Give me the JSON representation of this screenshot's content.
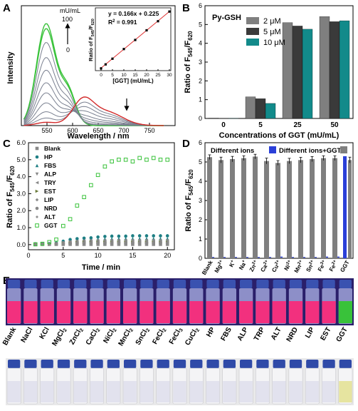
{
  "colors": {
    "gray": "#7f7f7f",
    "dark": "#3a3a3a",
    "teal": "#128a8a",
    "blue": "#2a3fd8",
    "green": "#39c23a",
    "red": "#d22a2a",
    "spectrum_gray": "#7a8090",
    "fit_line": "#e03030",
    "pink": "#f2307e",
    "uv_bg": "#2a1f6a"
  },
  "chart_data": [
    {
      "panel": "A",
      "type": "line",
      "xlabel": "Wavelength / nm",
      "ylabel": "Intensity",
      "xlim": [
        500,
        800
      ],
      "xticks": [
        550,
        600,
        650,
        700,
        750
      ],
      "ylim": [
        0,
        48
      ],
      "conc_units": "mU/mL",
      "conc_max": "100",
      "conc_min": "0",
      "series": [
        {
          "peak545": 40.5,
          "peak620": 0.0,
          "color": "green"
        },
        {
          "peak545": 38.5,
          "peak620": 0.0,
          "color": "green"
        },
        {
          "peak545": 33.0,
          "peak620": 0.3,
          "color": "gray"
        },
        {
          "peak545": 27.0,
          "peak620": 0.6,
          "color": "gray"
        },
        {
          "peak545": 22.0,
          "peak620": 1.2,
          "color": "gray"
        },
        {
          "peak545": 17.0,
          "peak620": 2.0,
          "color": "gray"
        },
        {
          "peak545": 13.0,
          "peak620": 3.0,
          "color": "gray"
        },
        {
          "peak545": 9.0,
          "peak620": 4.5,
          "color": "gray"
        },
        {
          "peak545": 5.5,
          "peak620": 6.0,
          "color": "gray"
        },
        {
          "peak545": 3.0,
          "peak620": 7.5,
          "color": "gray"
        },
        {
          "peak545": 1.3,
          "peak620": 9.2,
          "color": "red"
        }
      ],
      "inset": {
        "type": "scatter",
        "xlabel": "[GGT]  (mU/mL)",
        "ylabel": "Ratio of F545/F620",
        "ylabel_main": "Ratio of F",
        "ylabel_sub1": "545",
        "ylabel_sep": "/F",
        "ylabel_sub2": "620",
        "equation": "y = 0.166x + 0.225",
        "r2_main": "R",
        "r2_sup": "2",
        "r2_rest": " = 0.991",
        "xlim": [
          0,
          30
        ],
        "xticks": [
          0,
          5,
          10,
          15,
          20,
          25,
          30
        ],
        "ylim": [
          0,
          5.4
        ],
        "slope": 0.166,
        "intercept": 0.225,
        "x": [
          0,
          2,
          5,
          10,
          15,
          20,
          25,
          30
        ],
        "y": [
          0.2,
          0.55,
          1.05,
          1.9,
          2.7,
          3.55,
          4.35,
          5.2
        ]
      }
    },
    {
      "panel": "B",
      "type": "bar",
      "title": "Py-GSH",
      "xlabel": "Concentrations of GGT (mU/mL)",
      "ylabel": "Ratio of F545/F620",
      "ylabel_main": "Ratio of F",
      "ylabel_sub1": "545",
      "ylabel_sep": "/F",
      "ylabel_sub2": "620",
      "categories": [
        "0",
        "5",
        "25",
        "50"
      ],
      "ylim": [
        0,
        6
      ],
      "yticks": [
        0,
        1,
        2,
        3,
        4,
        5,
        6
      ],
      "series": [
        {
          "name": "2 μM",
          "values": [
            0.02,
            1.15,
            5.1,
            5.42
          ],
          "color": "gray"
        },
        {
          "name": "5 μM",
          "values": [
            0.01,
            1.05,
            4.92,
            5.15
          ],
          "color": "dark"
        },
        {
          "name": "10 μM",
          "values": [
            0.01,
            0.8,
            4.75,
            5.2
          ],
          "color": "teal"
        }
      ]
    },
    {
      "panel": "C",
      "type": "scatter",
      "xlabel": "Time / min",
      "ylabel": "Ratio of F545/F620",
      "ylabel_main": "Ratio of F",
      "ylabel_sub1": "545",
      "ylabel_sep": "/F",
      "ylabel_sub2": "620",
      "xlim": [
        0,
        21
      ],
      "xticks": [
        0,
        5,
        10,
        15,
        20
      ],
      "ylim": [
        -0.3,
        6
      ],
      "yticks": [
        0,
        1,
        2,
        3,
        4,
        5,
        6
      ],
      "x": [
        1,
        2,
        3,
        4,
        5,
        6,
        7,
        8,
        9,
        10,
        11,
        12,
        13,
        14,
        15,
        16,
        17,
        18,
        19,
        20
      ],
      "series": [
        {
          "name": "Blank",
          "marker": "square",
          "values": [
            0.02,
            0.02,
            0.02,
            0.02,
            0.02,
            0.02,
            0.02,
            0.02,
            0.02,
            0.02,
            0.02,
            0.02,
            0.02,
            0.02,
            0.02,
            0.02,
            0.02,
            0.02,
            0.02,
            0.02
          ]
        },
        {
          "name": "HP",
          "marker": "circle",
          "values": [
            0.05,
            0.05,
            0.06,
            0.1,
            0.2,
            0.3,
            0.35,
            0.38,
            0.4,
            0.45,
            0.48,
            0.5,
            0.5,
            0.5,
            0.52,
            0.52,
            0.52,
            0.52,
            0.52,
            0.52
          ]
        },
        {
          "name": "FBS",
          "marker": "triangle-up",
          "values": [
            0.03,
            0.04,
            0.05,
            0.08,
            0.15,
            0.2,
            0.25,
            0.28,
            0.3,
            0.32,
            0.33,
            0.34,
            0.35,
            0.35,
            0.35,
            0.35,
            0.35,
            0.35,
            0.35,
            0.35
          ]
        },
        {
          "name": "ALP",
          "marker": "triangle-down",
          "values": [
            0.02,
            0.02,
            0.03,
            0.05,
            0.1,
            0.15,
            0.18,
            0.2,
            0.22,
            0.22,
            0.22,
            0.23,
            0.23,
            0.23,
            0.23,
            0.23,
            0.23,
            0.23,
            0.23,
            0.23
          ]
        },
        {
          "name": "TRY",
          "marker": "triangle-left",
          "values": [
            0.02,
            0.02,
            0.02,
            0.04,
            0.08,
            0.12,
            0.15,
            0.17,
            0.18,
            0.18,
            0.18,
            0.18,
            0.18,
            0.18,
            0.18,
            0.18,
            0.18,
            0.18,
            0.18,
            0.18
          ]
        },
        {
          "name": "EST",
          "marker": "triangle-right",
          "values": [
            0.02,
            0.02,
            0.02,
            0.03,
            0.06,
            0.1,
            0.13,
            0.15,
            0.15,
            0.15,
            0.15,
            0.15,
            0.15,
            0.15,
            0.15,
            0.15,
            0.15,
            0.15,
            0.15,
            0.15
          ]
        },
        {
          "name": "LIP",
          "marker": "diamond",
          "values": [
            0.02,
            0.02,
            0.02,
            0.03,
            0.05,
            0.08,
            0.1,
            0.12,
            0.12,
            0.12,
            0.12,
            0.12,
            0.12,
            0.12,
            0.12,
            0.12,
            0.12,
            0.12,
            0.12,
            0.12
          ]
        },
        {
          "name": "NRD",
          "marker": "hexagon",
          "values": [
            0.02,
            0.02,
            0.02,
            0.03,
            0.04,
            0.07,
            0.09,
            0.1,
            0.1,
            0.1,
            0.1,
            0.1,
            0.1,
            0.1,
            0.1,
            0.1,
            0.1,
            0.1,
            0.1,
            0.1
          ]
        },
        {
          "name": "ALT",
          "marker": "star",
          "values": [
            0.02,
            0.02,
            0.02,
            0.02,
            0.04,
            0.06,
            0.08,
            0.08,
            0.08,
            0.08,
            0.08,
            0.08,
            0.08,
            0.08,
            0.08,
            0.08,
            0.08,
            0.08,
            0.08,
            0.08
          ]
        },
        {
          "name": "GGT",
          "marker": "square-open",
          "values": [
            0.02,
            0.05,
            0.15,
            0.3,
            1.1,
            1.5,
            2.3,
            2.8,
            3.5,
            4.1,
            4.6,
            4.9,
            5.0,
            5.0,
            4.9,
            5.1,
            5.0,
            5.1,
            5.0,
            5.0
          ]
        }
      ]
    },
    {
      "panel": "D",
      "type": "bar",
      "ylabel": "Ratio of F545/F620",
      "ylabel_main": "Ratio of F",
      "ylabel_sub1": "545",
      "ylabel_sep": "/F",
      "ylabel_sub2": "620",
      "ylim": [
        0,
        6
      ],
      "yticks": [
        0,
        1,
        2,
        3,
        4,
        5,
        6
      ],
      "legend": [
        "Different ions",
        "Different ions+GGT"
      ],
      "categories": [
        {
          "main": "Blank",
          "sup": ""
        },
        {
          "main": "Mg",
          "sup": "2+"
        },
        {
          "main": "K",
          "sup": "+"
        },
        {
          "main": "Na",
          "sup": "+"
        },
        {
          "main": "Zn",
          "sup": "2+"
        },
        {
          "main": "Ca",
          "sup": "2+"
        },
        {
          "main": "Cu",
          "sup": "2+"
        },
        {
          "main": "Ni",
          "sup": "2+"
        },
        {
          "main": "Mn",
          "sup": "2+"
        },
        {
          "main": "Sn",
          "sup": "2+"
        },
        {
          "main": "Fe",
          "sup": "3+"
        },
        {
          "main": "Fe",
          "sup": "2+"
        },
        {
          "main": "GGT",
          "sup": ""
        }
      ],
      "ions_values": [
        0.03,
        0.03,
        0.03,
        0.03,
        0.03,
        0.03,
        0.05,
        0.03,
        0.03,
        0.03,
        0.05,
        0.05,
        5.3
      ],
      "ions_ggt_values": [
        5.25,
        5.1,
        5.15,
        5.2,
        5.28,
        5.05,
        4.95,
        5.05,
        5.1,
        5.15,
        5.2,
        5.2,
        5.1
      ],
      "errors": [
        0.12,
        0.15,
        0.14,
        0.12,
        0.12,
        0.15,
        0.12,
        0.14,
        0.14,
        0.13,
        0.12,
        0.12,
        0.15
      ]
    }
  ],
  "panel_E": {
    "label": "E",
    "top_strip": "pink",
    "bottom_strip": "clear",
    "labels": [
      [
        {
          "t": "Blank"
        }
      ],
      [
        {
          "t": "NaCl"
        }
      ],
      [
        {
          "t": "KCl"
        }
      ],
      [
        {
          "t": "MgCl"
        },
        {
          "t": "2",
          "sub": true
        }
      ],
      [
        {
          "t": "ZnCl"
        },
        {
          "t": "2",
          "sub": true
        }
      ],
      [
        {
          "t": "CaCl"
        },
        {
          "t": "2",
          "sub": true
        }
      ],
      [
        {
          "t": "NiCl"
        },
        {
          "t": "2",
          "sub": true
        }
      ],
      [
        {
          "t": "MnCl"
        },
        {
          "t": "2",
          "sub": true
        }
      ],
      [
        {
          "t": "SnCl"
        },
        {
          "t": "2",
          "sub": true
        }
      ],
      [
        {
          "t": "FeCl"
        },
        {
          "t": "2",
          "sub": true
        }
      ],
      [
        {
          "t": "FeCl"
        },
        {
          "t": "3",
          "sub": true
        }
      ],
      [
        {
          "t": "CuCl"
        },
        {
          "t": "2",
          "sub": true
        }
      ],
      [
        {
          "t": "HP"
        }
      ],
      [
        {
          "t": "FBS"
        }
      ],
      [
        {
          "t": "ALP"
        }
      ],
      [
        {
          "t": "TRP"
        }
      ],
      [
        {
          "t": "ALT"
        }
      ],
      [
        {
          "t": "NRD"
        }
      ],
      [
        {
          "t": "LIP"
        }
      ],
      [
        {
          "t": "EST"
        }
      ],
      [
        {
          "t": "GGT"
        }
      ]
    ]
  },
  "panel_letters": [
    "A",
    "B",
    "C",
    "D"
  ]
}
